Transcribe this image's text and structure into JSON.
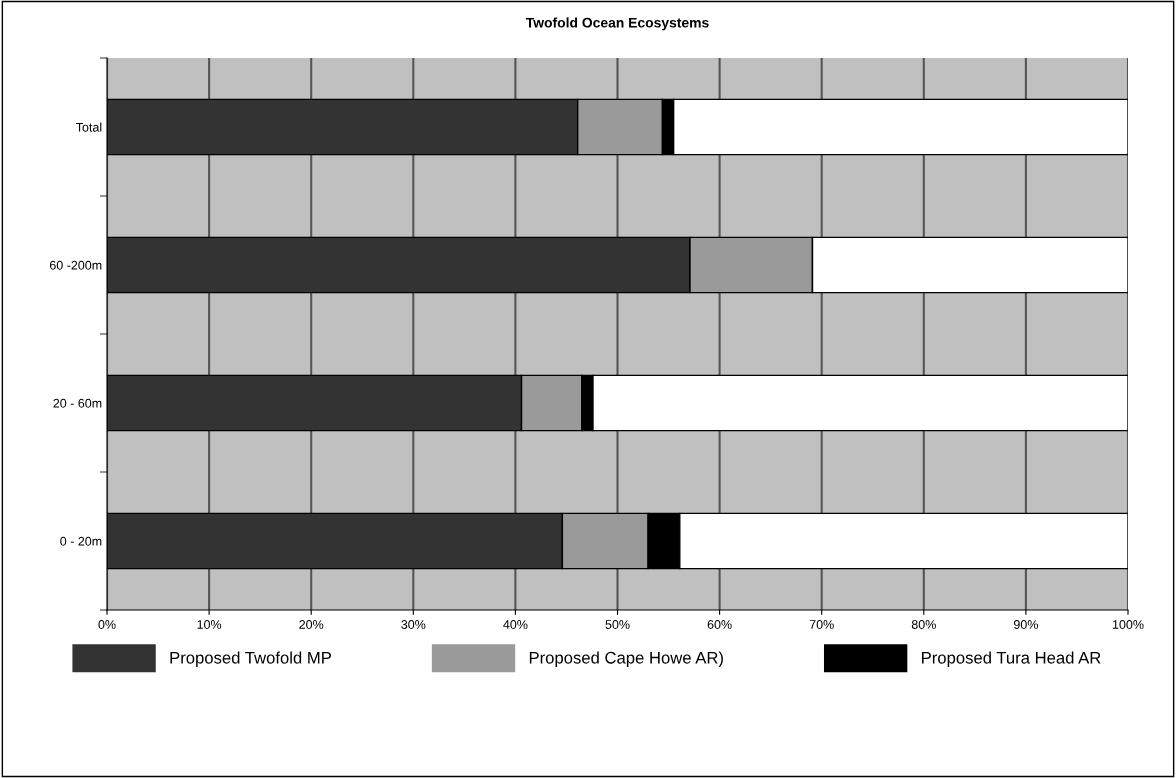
{
  "chart_data": {
    "type": "bar",
    "title": "Twofold Ocean Ecosystems",
    "orientation": "horizontal",
    "stacked": true,
    "categories": [
      "Total",
      "60 -200m",
      "20 - 60m",
      "0 - 20m"
    ],
    "series": [
      {
        "name": "Proposed Twofold MP",
        "color": "#333333",
        "values": [
          46.1,
          57.1,
          40.6,
          44.6
        ]
      },
      {
        "name": "Proposed Cape Howe AR)",
        "color": "#9a9a9a",
        "values": [
          8.3,
          12.0,
          5.9,
          8.4
        ]
      },
      {
        "name": "Proposed Tura Head AR",
        "color": "#000000",
        "values": [
          1.1,
          0,
          1.1,
          3.1
        ]
      },
      {
        "color": "#ffffff",
        "values": [
          44.5,
          30.9,
          52.4,
          43.9
        ]
      }
    ],
    "xlim": [
      0,
      100
    ],
    "xticks": [
      {
        "value": 0,
        "label": "0%"
      },
      {
        "value": 10,
        "label": "10%"
      },
      {
        "value": 20,
        "label": "20%"
      },
      {
        "value": 30,
        "label": "30%"
      },
      {
        "value": 40,
        "label": "40%"
      },
      {
        "value": 50,
        "label": "50%"
      },
      {
        "value": 60,
        "label": "60%"
      },
      {
        "value": 70,
        "label": "70%"
      },
      {
        "value": 80,
        "label": "80%"
      },
      {
        "value": 90,
        "label": "90%"
      },
      {
        "value": 100,
        "label": "100%"
      }
    ],
    "grid": "x",
    "legend": "bottom"
  }
}
